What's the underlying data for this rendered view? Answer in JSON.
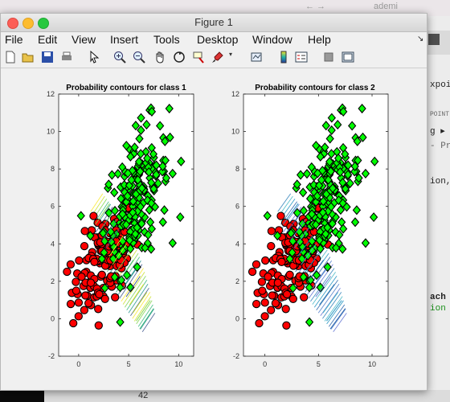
{
  "background": {
    "top_text": "ademi",
    "top_right_text": "←  →",
    "editor_fragments": [
      "xpoint",
      "POINT",
      "g ▸ (",
      "- Pr",
      "ion,",
      "ach",
      "ion"
    ],
    "line_number": "42"
  },
  "window": {
    "title": "Figure 1"
  },
  "menu": [
    "File",
    "Edit",
    "View",
    "Insert",
    "Tools",
    "Desktop",
    "Window",
    "Help"
  ],
  "toolbar_icons": [
    "new-figure-icon",
    "open-file-icon",
    "save-icon",
    "print-icon",
    "pointer-icon",
    "zoom-in-icon",
    "zoom-out-icon",
    "pan-icon",
    "rotate-3d-icon",
    "data-cursor-icon",
    "brush-icon",
    "brush-dropdown-icon",
    "link-plot-icon",
    "colorbar-icon",
    "legend-icon",
    "hide-plot-tools-icon",
    "show-plot-tools-icon"
  ],
  "chart_data": [
    {
      "type": "scatter",
      "title": "Probability contours for class 1",
      "xticks": [
        "0",
        "5",
        "10"
      ],
      "yticks": [
        "-2",
        "0",
        "2",
        "4",
        "6",
        "8",
        "10",
        "12"
      ],
      "xlim": [
        -2,
        11.5
      ],
      "ylim": [
        -2,
        12
      ],
      "series": [
        {
          "marker": "circle",
          "color": "#ff0000",
          "centroid": [
            2.5,
            3.0
          ],
          "spread": [
            1.6,
            1.4
          ],
          "count": 140
        },
        {
          "marker": "diamond",
          "color": "#00ff00",
          "centroid": [
            5.8,
            6.5
          ],
          "spread": [
            1.6,
            1.9
          ],
          "count": 220
        }
      ],
      "contour_colormap": "parula-like (yellow/green/cyan/blue)"
    },
    {
      "type": "scatter",
      "title": "Probability contours for class 2",
      "xticks": [
        "0",
        "5",
        "10"
      ],
      "yticks": [
        "-2",
        "0",
        "2",
        "4",
        "6",
        "8",
        "10",
        "12"
      ],
      "xlim": [
        -2,
        11.5
      ],
      "ylim": [
        -2,
        12
      ],
      "series": [
        {
          "marker": "circle",
          "color": "#ff0000",
          "centroid": [
            2.5,
            3.0
          ],
          "spread": [
            1.6,
            1.4
          ],
          "count": 140
        },
        {
          "marker": "diamond",
          "color": "#00ff00",
          "centroid": [
            5.8,
            6.5
          ],
          "spread": [
            1.6,
            1.9
          ],
          "count": 220
        }
      ],
      "contour_colormap": "parula-like (blue/cyan)"
    }
  ]
}
